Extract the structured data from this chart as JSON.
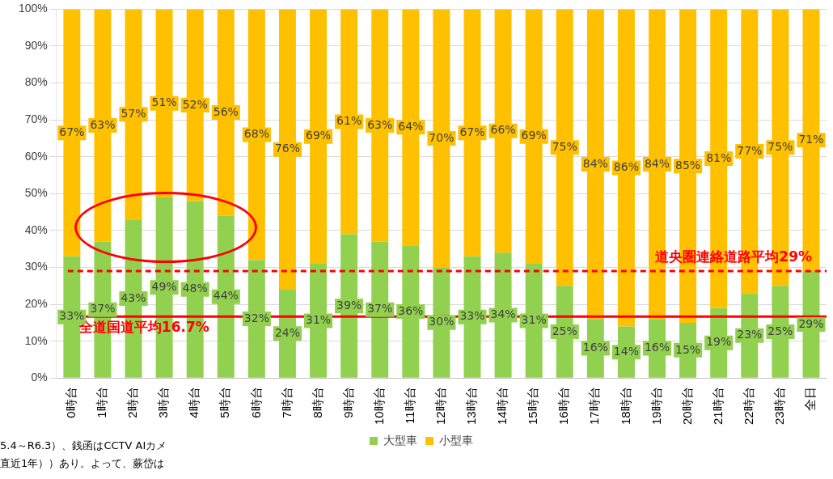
{
  "chart_data": {
    "type": "bar",
    "stacked": true,
    "categories": [
      "0時台",
      "1時台",
      "2時台",
      "3時台",
      "4時台",
      "5時台",
      "6時台",
      "7時台",
      "8時台",
      "9時台",
      "10時台",
      "11時台",
      "12時台",
      "13時台",
      "14時台",
      "15時台",
      "16時台",
      "17時台",
      "18時台",
      "19時台",
      "20時台",
      "21時台",
      "22時台",
      "23時台",
      "全日"
    ],
    "series": [
      {
        "name": "大型車",
        "color": "#92d050",
        "values": [
          33,
          37,
          43,
          49,
          48,
          44,
          32,
          24,
          31,
          39,
          37,
          36,
          30,
          33,
          34,
          31,
          25,
          16,
          14,
          16,
          15,
          19,
          23,
          25,
          29
        ],
        "value_labels": [
          "33%",
          "37%",
          "43%",
          "49%",
          "48%",
          "44%",
          "32%",
          "24%",
          "31%",
          "39%",
          "37%",
          "36%",
          "30%",
          "33%",
          "34%",
          "31%",
          "25%",
          "16%",
          "14%",
          "16%",
          "15%",
          "19%",
          "23%",
          "25%",
          "29%"
        ]
      },
      {
        "name": "小型車",
        "color": "#ffc000",
        "values": [
          67,
          63,
          57,
          51,
          52,
          56,
          68,
          76,
          69,
          61,
          63,
          64,
          70,
          67,
          66,
          69,
          75,
          84,
          86,
          84,
          85,
          81,
          77,
          75,
          71
        ],
        "value_labels": [
          "67%",
          "63%",
          "57%",
          "51%",
          "52%",
          "56%",
          "68%",
          "76%",
          "69%",
          "61%",
          "63%",
          "64%",
          "70%",
          "67%",
          "66%",
          "69%",
          "75%",
          "84%",
          "86%",
          "84%",
          "85%",
          "81%",
          "77%",
          "75%",
          "71%"
        ]
      }
    ],
    "ylim": [
      0,
      100
    ],
    "yticks": [
      {
        "value": 0,
        "label": "0%"
      },
      {
        "value": 10,
        "label": "10%"
      },
      {
        "value": 20,
        "label": "20%"
      },
      {
        "value": 30,
        "label": "30%"
      },
      {
        "value": 40,
        "label": "40%"
      },
      {
        "value": 50,
        "label": "50%"
      },
      {
        "value": 60,
        "label": "60%"
      },
      {
        "value": 70,
        "label": "70%"
      },
      {
        "value": 80,
        "label": "80%"
      },
      {
        "value": 90,
        "label": "90%"
      },
      {
        "value": 100,
        "label": "100%"
      }
    ],
    "grid": "y",
    "legend": "bottom",
    "ref_lines": [
      {
        "axis": "y",
        "value": 29,
        "label": "道央圏連絡道路平均29%",
        "color": "#ff0000",
        "line_style": "dashed"
      },
      {
        "axis": "y",
        "value": 16.7,
        "label": "全道国道平均16.7%",
        "color": "#ff0000",
        "line_style": "solid"
      }
    ],
    "annotations": [
      "5.4～R6.3）、銭函はCCTV AIカメ",
      "直近1年））あり。よって、蕨岱は"
    ]
  }
}
